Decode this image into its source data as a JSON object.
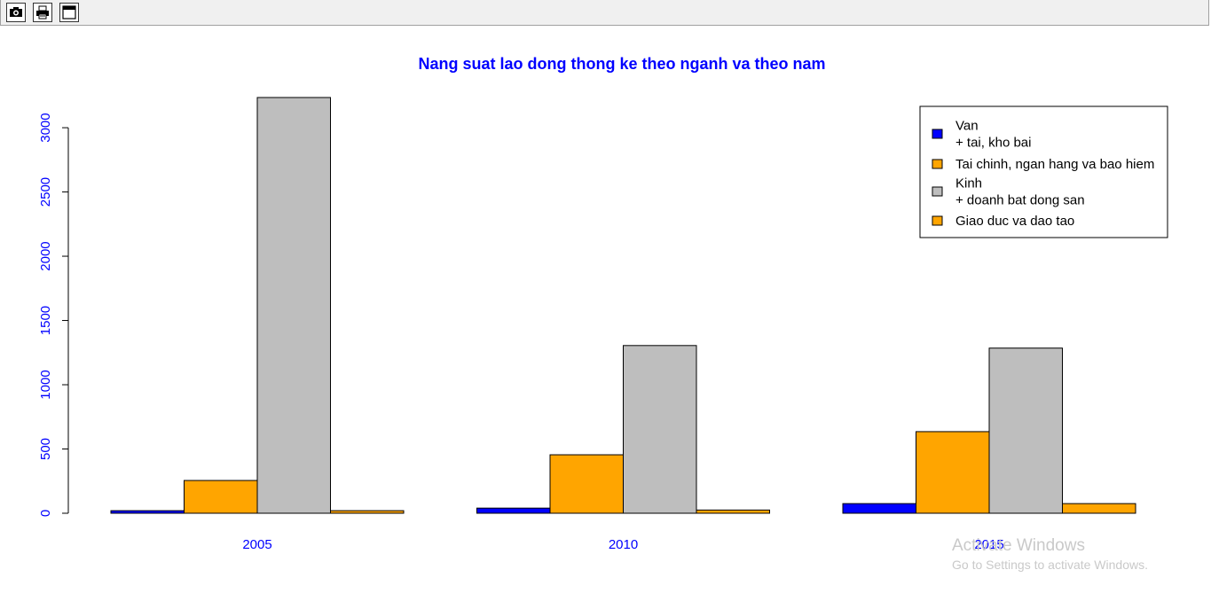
{
  "toolbar": {
    "buttons": [
      {
        "name": "save-image-button",
        "icon": "camera-icon"
      },
      {
        "name": "print-button",
        "icon": "printer-icon"
      },
      {
        "name": "window-button",
        "icon": "window-icon"
      }
    ]
  },
  "chart_data": {
    "type": "bar",
    "title": "Nang suat lao dong thong ke theo nganh va theo nam",
    "xlabel": "",
    "ylabel": "",
    "categories": [
      "2005",
      "2010",
      "2015"
    ],
    "series": [
      {
        "name": "Van\n+ tai, kho bai",
        "color": "#0000ff",
        "values": [
          20,
          40,
          75
        ]
      },
      {
        "name": "Tai chinh, ngan hang va bao hiem",
        "color": "#ffa500",
        "values": [
          255,
          455,
          635
        ]
      },
      {
        "name": "Kinh\n+ doanh bat dong san",
        "color": "#bebebe",
        "values": [
          3235,
          1305,
          1285
        ]
      },
      {
        "name": "Giao duc va dao tao",
        "color": "#ffa500",
        "values": [
          20,
          25,
          75
        ]
      }
    ],
    "ylim": [
      0,
      3235
    ],
    "yticks": [
      0,
      500,
      1000,
      1500,
      2000,
      2500,
      3000
    ],
    "grid": false,
    "legend": "top-right",
    "axis_color": "#0000ff",
    "title_color": "#0000ff"
  },
  "watermark": {
    "title": "Activate Windows",
    "subtitle": "Go to Settings to activate Windows."
  }
}
